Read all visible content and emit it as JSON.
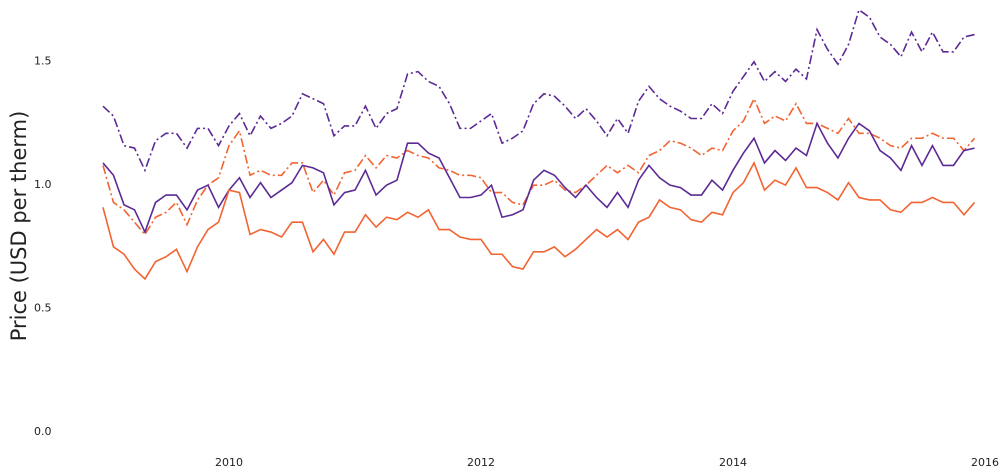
{
  "chart_data": {
    "type": "line",
    "ylabel": "Price (USD per therm)",
    "x": [
      2009,
      2009.083,
      2009.167,
      2009.25,
      2009.333,
      2009.417,
      2009.5,
      2009.583,
      2009.667,
      2009.75,
      2009.833,
      2009.917,
      2010,
      2010.083,
      2010.167,
      2010.25,
      2010.333,
      2010.417,
      2010.5,
      2010.583,
      2010.667,
      2010.75,
      2010.833,
      2010.917,
      2011,
      2011.083,
      2011.167,
      2011.25,
      2011.333,
      2011.417,
      2011.5,
      2011.583,
      2011.667,
      2011.75,
      2011.833,
      2011.917,
      2012,
      2012.083,
      2012.167,
      2012.25,
      2012.333,
      2012.417,
      2012.5,
      2012.583,
      2012.667,
      2012.75,
      2012.833,
      2012.917,
      2013,
      2013.083,
      2013.167,
      2013.25,
      2013.333,
      2013.417,
      2013.5,
      2013.583,
      2013.667,
      2013.75,
      2013.833,
      2013.917,
      2014,
      2014.083,
      2014.167,
      2014.25,
      2014.333,
      2014.417,
      2014.5,
      2014.583,
      2014.667,
      2014.75,
      2014.833,
      2014.917,
      2015,
      2015.083,
      2015.167,
      2015.25,
      2015.333,
      2015.417,
      2015.5,
      2015.583,
      2015.667,
      2015.75,
      2015.833,
      2015.917
    ],
    "series": [
      {
        "color": "#5c2a94",
        "dash": "dashdot",
        "values": [
          1.32,
          1.28,
          1.16,
          1.15,
          1.06,
          1.18,
          1.21,
          1.21,
          1.15,
          1.23,
          1.23,
          1.16,
          1.24,
          1.29,
          1.2,
          1.28,
          1.23,
          1.25,
          1.28,
          1.37,
          1.35,
          1.33,
          1.2,
          1.24,
          1.24,
          1.32,
          1.23,
          1.29,
          1.31,
          1.45,
          1.46,
          1.42,
          1.4,
          1.33,
          1.23,
          1.23,
          1.26,
          1.29,
          1.17,
          1.19,
          1.22,
          1.33,
          1.37,
          1.36,
          1.32,
          1.27,
          1.31,
          1.26,
          1.2,
          1.27,
          1.21,
          1.34,
          1.4,
          1.35,
          1.32,
          1.3,
          1.27,
          1.27,
          1.33,
          1.29,
          1.38,
          1.44,
          1.5,
          1.42,
          1.46,
          1.42,
          1.47,
          1.43,
          1.63,
          1.55,
          1.49,
          1.57,
          1.71,
          1.68,
          1.6,
          1.57,
          1.52,
          1.62,
          1.54,
          1.62,
          1.54,
          1.54,
          1.6,
          1.61
        ]
      },
      {
        "color": "#f26432",
        "dash": "dashdot",
        "values": [
          1.08,
          0.93,
          0.9,
          0.85,
          0.8,
          0.87,
          0.89,
          0.93,
          0.84,
          0.94,
          1.0,
          1.03,
          1.16,
          1.22,
          1.04,
          1.06,
          1.04,
          1.04,
          1.09,
          1.09,
          0.97,
          1.02,
          0.96,
          1.05,
          1.06,
          1.12,
          1.07,
          1.12,
          1.11,
          1.14,
          1.12,
          1.11,
          1.07,
          1.06,
          1.04,
          1.04,
          1.03,
          0.97,
          0.97,
          0.93,
          0.92,
          1.0,
          1.0,
          1.02,
          0.98,
          0.97,
          1.0,
          1.04,
          1.08,
          1.05,
          1.08,
          1.05,
          1.12,
          1.14,
          1.18,
          1.17,
          1.15,
          1.12,
          1.15,
          1.14,
          1.22,
          1.26,
          1.35,
          1.25,
          1.28,
          1.26,
          1.33,
          1.25,
          1.25,
          1.23,
          1.21,
          1.27,
          1.21,
          1.21,
          1.19,
          1.16,
          1.15,
          1.19,
          1.19,
          1.21,
          1.19,
          1.19,
          1.14,
          1.19
        ]
      },
      {
        "color": "#5c2a94",
        "dash": "solid",
        "values": [
          1.09,
          1.04,
          0.92,
          0.9,
          0.81,
          0.93,
          0.96,
          0.96,
          0.9,
          0.98,
          1.0,
          0.91,
          0.98,
          1.03,
          0.95,
          1.01,
          0.95,
          0.98,
          1.01,
          1.08,
          1.07,
          1.05,
          0.92,
          0.97,
          0.98,
          1.06,
          0.96,
          1.0,
          1.02,
          1.17,
          1.17,
          1.13,
          1.11,
          1.03,
          0.95,
          0.95,
          0.96,
          1.0,
          0.87,
          0.88,
          0.9,
          1.02,
          1.06,
          1.04,
          0.99,
          0.95,
          1.0,
          0.95,
          0.91,
          0.97,
          0.91,
          1.02,
          1.08,
          1.03,
          1.0,
          0.99,
          0.96,
          0.96,
          1.02,
          0.98,
          1.06,
          1.13,
          1.19,
          1.09,
          1.14,
          1.1,
          1.15,
          1.12,
          1.25,
          1.17,
          1.11,
          1.19,
          1.25,
          1.22,
          1.14,
          1.11,
          1.06,
          1.16,
          1.08,
          1.16,
          1.08,
          1.08,
          1.14,
          1.15
        ]
      },
      {
        "color": "#f26432",
        "dash": "solid",
        "values": [
          0.91,
          0.75,
          0.72,
          0.66,
          0.62,
          0.69,
          0.71,
          0.74,
          0.65,
          0.75,
          0.82,
          0.85,
          0.98,
          0.97,
          0.8,
          0.82,
          0.81,
          0.79,
          0.85,
          0.85,
          0.73,
          0.78,
          0.72,
          0.81,
          0.81,
          0.88,
          0.83,
          0.87,
          0.86,
          0.89,
          0.87,
          0.9,
          0.82,
          0.82,
          0.79,
          0.78,
          0.78,
          0.72,
          0.72,
          0.67,
          0.66,
          0.73,
          0.73,
          0.75,
          0.71,
          0.74,
          0.78,
          0.82,
          0.79,
          0.82,
          0.78,
          0.85,
          0.87,
          0.94,
          0.91,
          0.9,
          0.86,
          0.85,
          0.89,
          0.88,
          0.97,
          1.01,
          1.09,
          0.98,
          1.02,
          1.0,
          1.07,
          0.99,
          0.99,
          0.97,
          0.94,
          1.01,
          0.95,
          0.94,
          0.94,
          0.9,
          0.89,
          0.93,
          0.93,
          0.95,
          0.93,
          0.93,
          0.88,
          0.93
        ]
      }
    ],
    "xlim": [
      2009,
      2016
    ],
    "xticks": [
      2010,
      2012,
      2014,
      2016
    ],
    "ylim": [
      0,
      1.75
    ],
    "yticks": [
      {
        "value": 0,
        "label": "0.0"
      },
      0.5,
      {
        "value": 1,
        "label": "1.0"
      },
      1.5
    ]
  }
}
